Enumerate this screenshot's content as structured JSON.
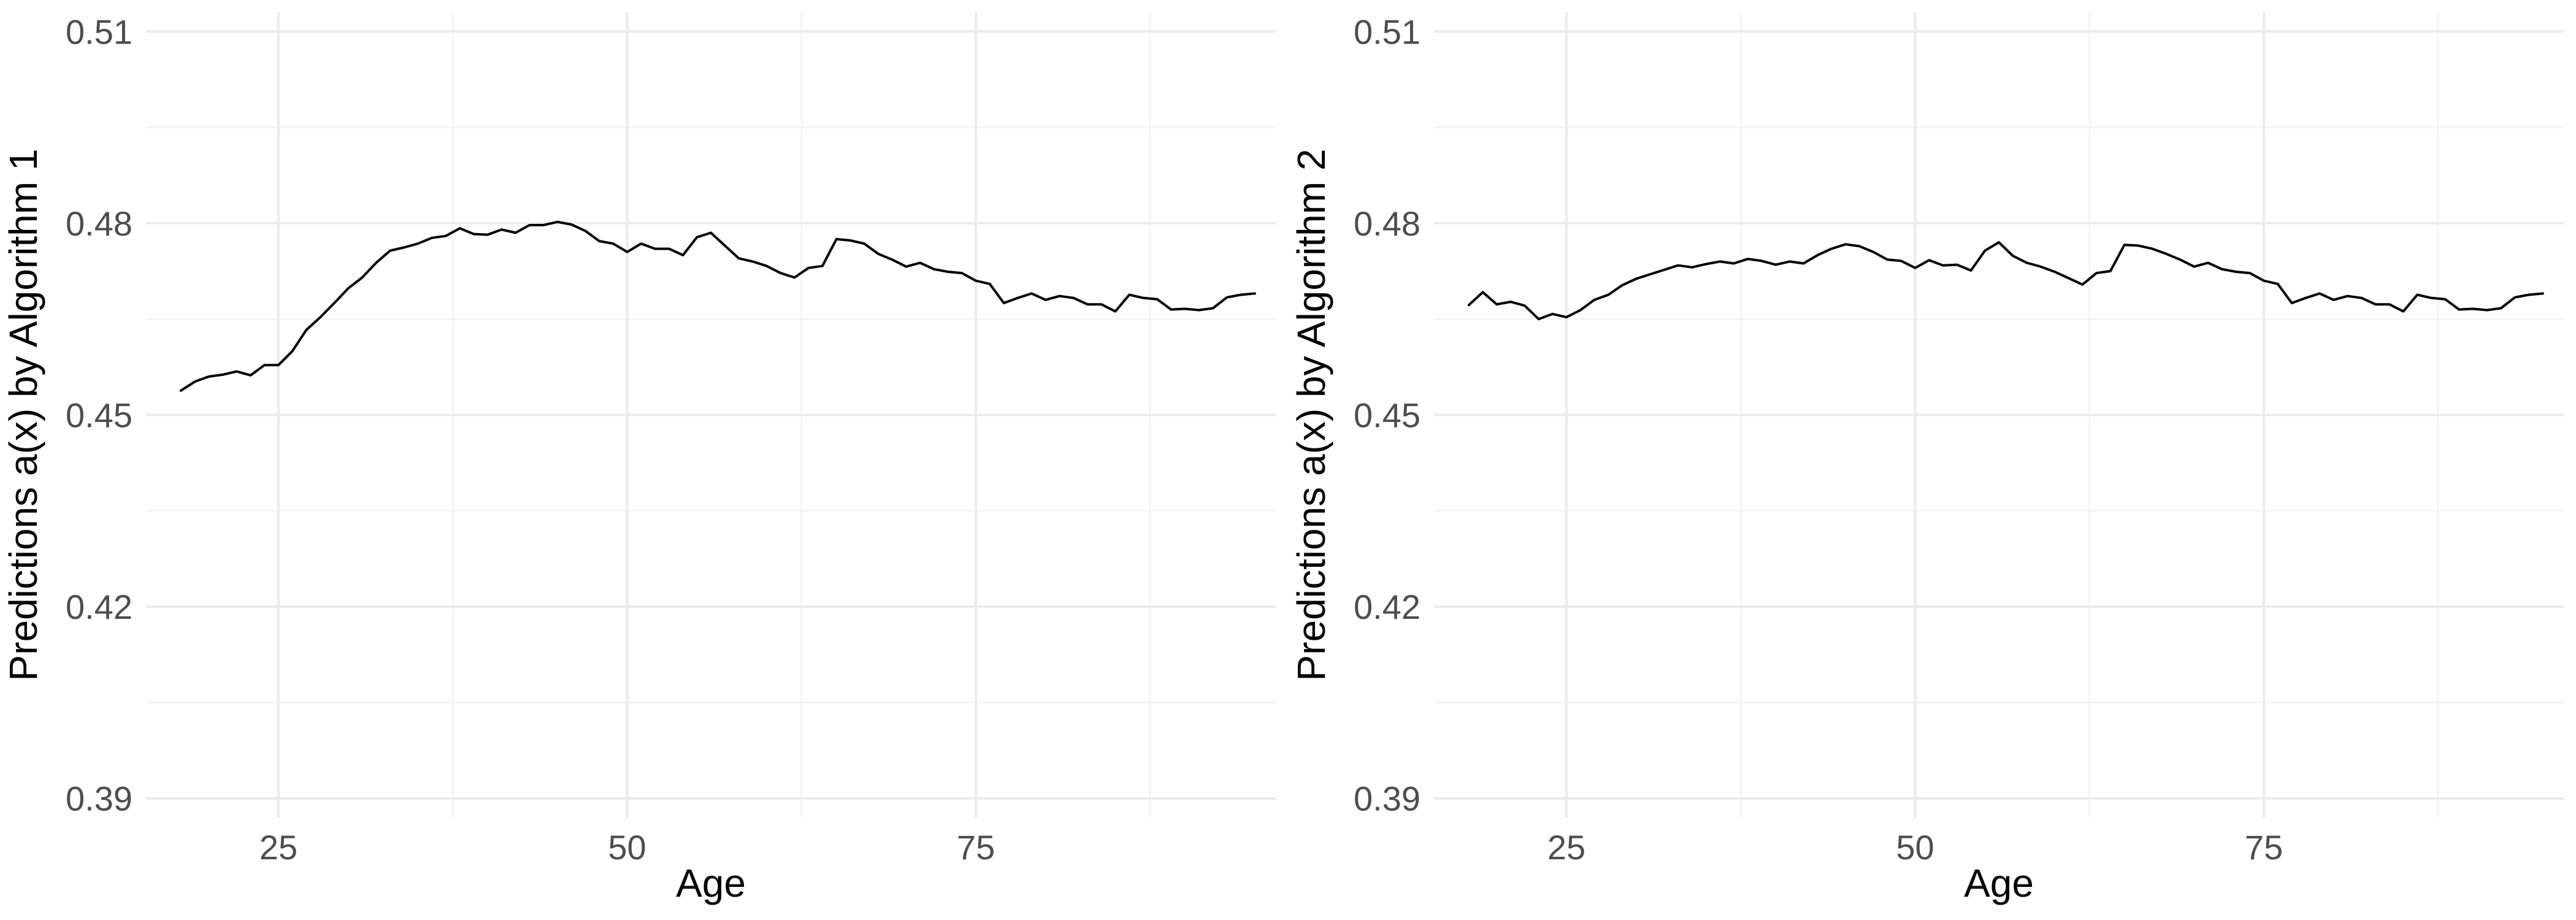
{
  "chart_data": [
    {
      "type": "line",
      "title": "",
      "xlabel": "Age",
      "ylabel": "Predictions a(x) by Algorithm 1",
      "xlim": [
        15.5,
        96.5
      ],
      "ylim": [
        0.387,
        0.513
      ],
      "x_ticks": [
        25,
        50,
        75
      ],
      "x_tick_labels": [
        "25",
        "50",
        "75"
      ],
      "y_ticks": [
        0.39,
        0.42,
        0.45,
        0.48,
        0.51
      ],
      "y_tick_labels": [
        "0.39",
        "0.42",
        "0.45",
        "0.48",
        "0.51"
      ],
      "grid": true,
      "series": [
        {
          "x": [
            18,
            19,
            20,
            21,
            22,
            23,
            24,
            25,
            26,
            27,
            28,
            29,
            30,
            31,
            32,
            33,
            34,
            35,
            36,
            37,
            38,
            39,
            40,
            41,
            42,
            43,
            44,
            45,
            46,
            47,
            48,
            49,
            50,
            51,
            52,
            53,
            54,
            55,
            56,
            57,
            58,
            59,
            60,
            61,
            62,
            63,
            64,
            65,
            66,
            67,
            68,
            69,
            70,
            71,
            72,
            73,
            74,
            75,
            76,
            77,
            78,
            79,
            80,
            81,
            82,
            83,
            84,
            85,
            86,
            87,
            88,
            89,
            90,
            91,
            92,
            93,
            94,
            95
          ],
          "y": [
            0.4538,
            0.4552,
            0.456,
            0.4563,
            0.4568,
            0.4562,
            0.4578,
            0.4578,
            0.46,
            0.4633,
            0.4653,
            0.4675,
            0.4698,
            0.4715,
            0.4738,
            0.4757,
            0.4762,
            0.4768,
            0.4777,
            0.478,
            0.4792,
            0.4783,
            0.4782,
            0.479,
            0.4785,
            0.4797,
            0.4797,
            0.4802,
            0.4798,
            0.4788,
            0.4772,
            0.4768,
            0.4755,
            0.4768,
            0.476,
            0.476,
            0.475,
            0.4778,
            0.4785,
            0.4765,
            0.4745,
            0.474,
            0.4733,
            0.4722,
            0.4715,
            0.473,
            0.4733,
            0.4775,
            0.4773,
            0.4768,
            0.4752,
            0.4743,
            0.4732,
            0.4738,
            0.4728,
            0.4724,
            0.4722,
            0.471,
            0.4705,
            0.4675,
            0.4683,
            0.469,
            0.468,
            0.4686,
            0.4683,
            0.4673,
            0.4673,
            0.4662,
            0.4688,
            0.4683,
            0.4681,
            0.4665,
            0.4666,
            0.4664,
            0.4667,
            0.4684,
            0.4688,
            0.469
          ]
        }
      ]
    },
    {
      "type": "line",
      "title": "",
      "xlabel": "Age",
      "ylabel": "Predictions a(x) by Algorithm 2",
      "xlim": [
        15.5,
        96.5
      ],
      "ylim": [
        0.387,
        0.513
      ],
      "x_ticks": [
        25,
        50,
        75
      ],
      "x_tick_labels": [
        "25",
        "50",
        "75"
      ],
      "y_ticks": [
        0.39,
        0.42,
        0.45,
        0.48,
        0.51
      ],
      "y_tick_labels": [
        "0.39",
        "0.42",
        "0.45",
        "0.48",
        "0.51"
      ],
      "grid": true,
      "series": [
        {
          "x": [
            18,
            19,
            20,
            21,
            22,
            23,
            24,
            25,
            26,
            27,
            28,
            29,
            30,
            31,
            32,
            33,
            34,
            35,
            36,
            37,
            38,
            39,
            40,
            41,
            42,
            43,
            44,
            45,
            46,
            47,
            48,
            49,
            50,
            51,
            52,
            53,
            54,
            55,
            56,
            57,
            58,
            59,
            60,
            61,
            62,
            63,
            64,
            65,
            66,
            67,
            68,
            69,
            70,
            71,
            72,
            73,
            74,
            75,
            76,
            77,
            78,
            79,
            80,
            81,
            82,
            83,
            84,
            85,
            86,
            87,
            88,
            89,
            90,
            91,
            92,
            93,
            94,
            95
          ],
          "y": [
            0.4672,
            0.4692,
            0.4673,
            0.4677,
            0.4671,
            0.465,
            0.4658,
            0.4653,
            0.4664,
            0.468,
            0.4688,
            0.4703,
            0.4713,
            0.472,
            0.4727,
            0.4734,
            0.4731,
            0.4736,
            0.474,
            0.4737,
            0.4744,
            0.4741,
            0.4735,
            0.474,
            0.4737,
            0.475,
            0.476,
            0.4767,
            0.4764,
            0.4755,
            0.4743,
            0.4741,
            0.473,
            0.4742,
            0.4734,
            0.4735,
            0.4726,
            0.4757,
            0.477,
            0.4749,
            0.4738,
            0.4732,
            0.4724,
            0.4714,
            0.4704,
            0.4722,
            0.4725,
            0.4766,
            0.4765,
            0.476,
            0.4752,
            0.4743,
            0.4732,
            0.4738,
            0.4728,
            0.4724,
            0.4722,
            0.471,
            0.4705,
            0.4675,
            0.4683,
            0.469,
            0.468,
            0.4686,
            0.4683,
            0.4673,
            0.4673,
            0.4662,
            0.4688,
            0.4683,
            0.4681,
            0.4665,
            0.4666,
            0.4664,
            0.4667,
            0.4684,
            0.4688,
            0.469
          ]
        }
      ]
    }
  ]
}
